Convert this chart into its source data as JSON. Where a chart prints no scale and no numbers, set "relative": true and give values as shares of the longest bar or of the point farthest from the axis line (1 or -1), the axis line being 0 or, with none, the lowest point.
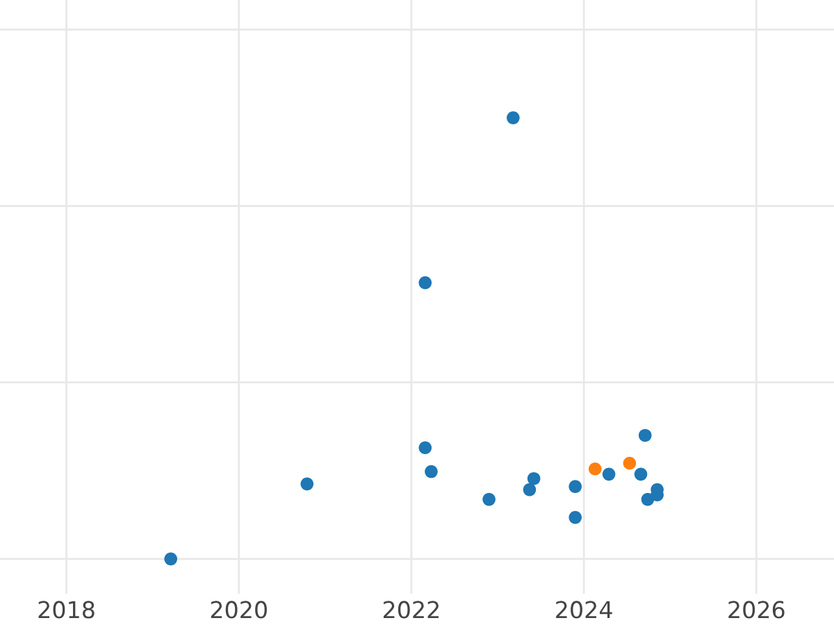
{
  "chart_data": {
    "type": "scatter",
    "relative": true,
    "grid": true,
    "marker": "circle",
    "xlim": [
      2017.23,
      2026.9
    ],
    "xticks": [
      2018,
      2020,
      2022,
      2024,
      2026
    ],
    "series": [
      {
        "color": "#1f77b4",
        "x": [
          2019.21,
          2020.79,
          2022.16,
          2022.16,
          2022.23,
          2022.9,
          2023.18,
          2023.37,
          2023.42,
          2023.9,
          2023.9,
          2024.29,
          2024.66,
          2024.71,
          2024.74,
          2024.85,
          2024.85
        ],
        "values": [
          0,
          0.17,
          0.626,
          0.252,
          0.198,
          0.135,
          1.0,
          0.157,
          0.182,
          0.164,
          0.094,
          0.192,
          0.192,
          0.28,
          0.135,
          0.157,
          0.145
        ]
      },
      {
        "color": "#ff7f0e",
        "x": [
          2024.13,
          2024.53
        ],
        "values": [
          0.204,
          0.217
        ]
      }
    ]
  }
}
